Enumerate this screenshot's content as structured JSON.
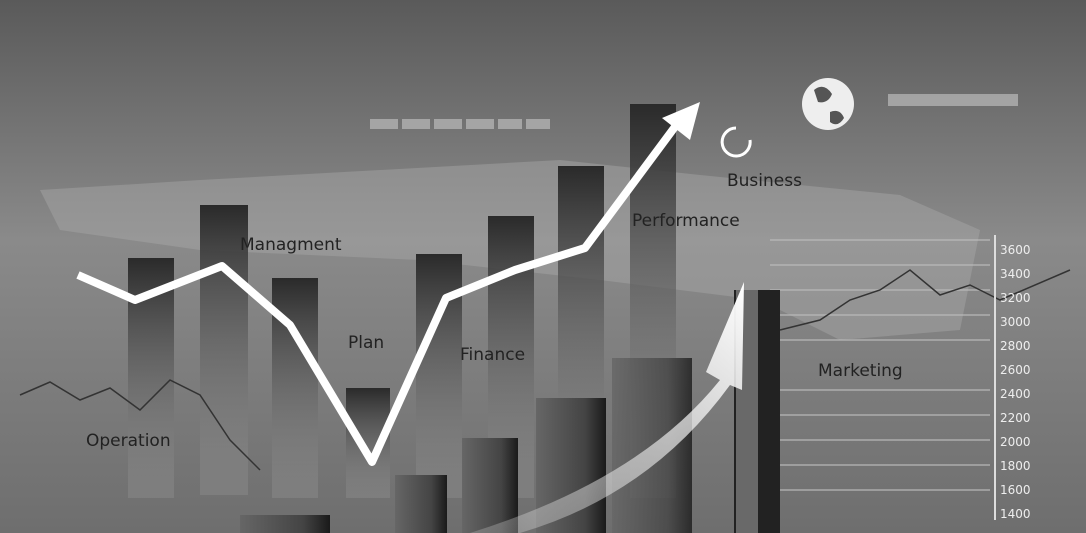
{
  "labels": {
    "business": "Business",
    "performance": "Performance",
    "management": "Managment",
    "plan": "Plan",
    "finance": "Finance",
    "operation": "Operation",
    "marketing": "Marketing"
  },
  "scale": [
    3600,
    3400,
    3200,
    3000,
    2800,
    2600,
    2400,
    2200,
    2000,
    1800,
    1600,
    1400
  ]
}
